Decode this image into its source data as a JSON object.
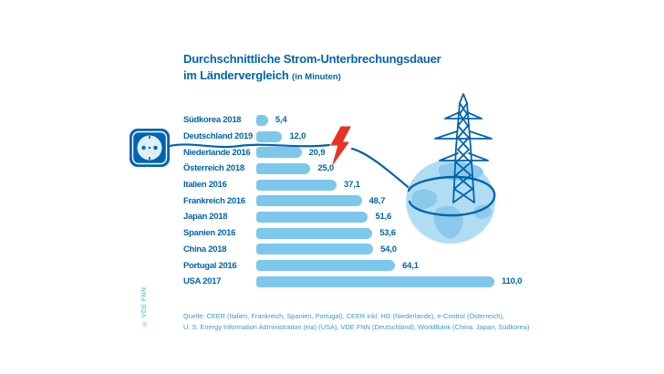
{
  "title": {
    "line1": "Durchschnittliche Strom-Unterbrechungsdauer",
    "line2": "im Ländervergleich",
    "unit_note": "(in Minuten)"
  },
  "chart_data": {
    "type": "bar",
    "orientation": "horizontal",
    "unit": "Minuten",
    "categories": [
      "Südkorea 2018",
      "Deutschland 2019",
      "Niederlande 2016",
      "Österreich 2018",
      "Italien 2016",
      "Frankreich 2016",
      "Japan 2018",
      "Spanien 2016",
      "China 2018",
      "Portugal 2016",
      "USA 2017"
    ],
    "values": [
      5.4,
      12.0,
      20.9,
      25.0,
      37.1,
      48.7,
      51.6,
      53.6,
      54.0,
      64.1,
      110.0
    ],
    "value_labels": [
      "5,4",
      "12,0",
      "20,9",
      "25,0",
      "37,1",
      "48,7",
      "51,6",
      "53,6",
      "54,0",
      "64,1",
      "110,0"
    ],
    "xlim": [
      0,
      110
    ],
    "highlight_row": "Deutschland 2019",
    "legend": "none",
    "grid": "off"
  },
  "source": {
    "line1": "Quelle: CEER (Italien, Frankreich, Spanien, Portugal), CEER inkl. HG (Niederlande), e-Control (Österreich),",
    "line2": "U. S. Energy Information Administration (eia) (USA), VDE FNN (Deutschland), WorldBank (China, Japan, Südkorea)"
  },
  "copyright": "© VDE FNN",
  "icons": {
    "socket": "power-socket-icon",
    "bolt": "lightning-bolt-icon",
    "pylon": "transmission-tower-icon",
    "globe": "globe-illustration"
  },
  "colors": {
    "brand_blue": "#0064AF",
    "bar_blue": "#7DC7EB",
    "globe_blue": "#B0DDF4",
    "continent_blue": "#8CC9EA",
    "source_blue": "#3E97D4",
    "bolt_red": "#E63323",
    "background": "#FFFFFF"
  }
}
